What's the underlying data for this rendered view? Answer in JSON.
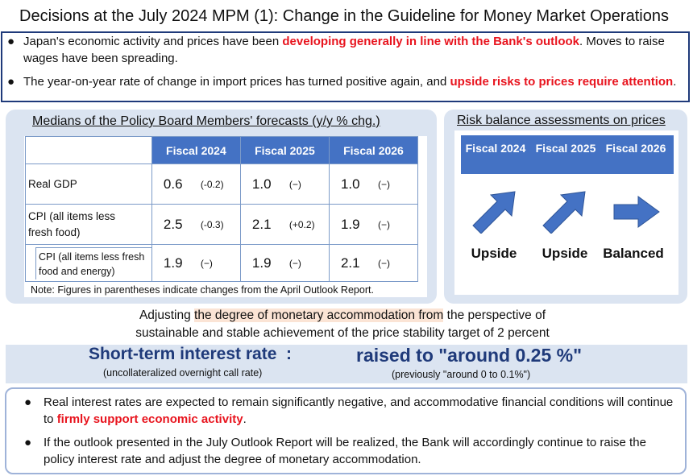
{
  "title": "Decisions at the July 2024 MPM (1): Change in the Guideline for Money Market Operations",
  "summary": {
    "bullet1": {
      "pre": "Japan's economic activity and prices have been ",
      "hl": "developing generally in line with the Bank's outlook",
      "post": ". Moves to raise wages have been spreading."
    },
    "bullet2": {
      "pre": "The year-on-year rate of change in import prices has turned positive again, and ",
      "hl": "upside risks to prices require attention",
      "post": "."
    }
  },
  "forecasts": {
    "title": "Medians of the Policy Board Members' forecasts (y/y % chg.)",
    "columns": [
      "Fiscal 2024",
      "Fiscal 2025",
      "Fiscal 2026"
    ],
    "rows": [
      {
        "label": "Real GDP",
        "cells": [
          {
            "v": "0.6",
            "c": "(-0.2)"
          },
          {
            "v": "1.0",
            "c": "(−)"
          },
          {
            "v": "1.0",
            "c": "(−)"
          }
        ]
      },
      {
        "label": "CPI (all items less fresh food)",
        "cells": [
          {
            "v": "2.5",
            "c": "(-0.3)"
          },
          {
            "v": "2.1",
            "c": "(+0.2)"
          },
          {
            "v": "1.9",
            "c": "(−)"
          }
        ]
      },
      {
        "label": "CPI (all items less fresh food and energy)",
        "cells": [
          {
            "v": "1.9",
            "c": "(−)"
          },
          {
            "v": "1.9",
            "c": "(−)"
          },
          {
            "v": "2.1",
            "c": "(−)"
          }
        ]
      }
    ],
    "note": "Note: Figures in parentheses indicate changes from the April Outlook Report."
  },
  "risk": {
    "title": "Risk balance assessments on prices",
    "columns": [
      "Fiscal 2024",
      "Fiscal 2025",
      "Fiscal 2026"
    ],
    "labels": [
      "Upside",
      "Upside",
      "Balanced"
    ],
    "arrows": [
      "arrow-up-right-icon",
      "arrow-up-right-icon",
      "arrow-right-icon"
    ],
    "arrow_color": "#4472c4"
  },
  "adjust": {
    "line1_pre": "Adjusting ",
    "line1_hl": "the degree of monetary accommodation from",
    "line1_post": " the perspective of",
    "line2": "sustainable and stable achievement of the price stability target of 2 percent"
  },
  "rate": {
    "label": "Short-term interest rate  :",
    "sub": "(uncollateralized overnight call rate)",
    "decision": "raised to \"around 0.25 %\"",
    "previous": "(previously \"around 0 to 0.1%\")"
  },
  "outlook": {
    "bullet1": {
      "pre": "Real interest rates are expected to remain significantly negative, and accommodative financial conditions will continue to ",
      "hl": "firmly support economic activity",
      "post": "."
    },
    "bullet2": {
      "text": "If the outlook presented in the July Outlook Report will be realized, the Bank will accordingly continue to raise the policy interest rate and adjust the degree of monetary accommodation."
    }
  },
  "colors": {
    "accent_red": "#e8141e",
    "header_blue": "#4472c4",
    "navy": "#1f3a7a",
    "panel_bg": "#dbe4f1"
  }
}
